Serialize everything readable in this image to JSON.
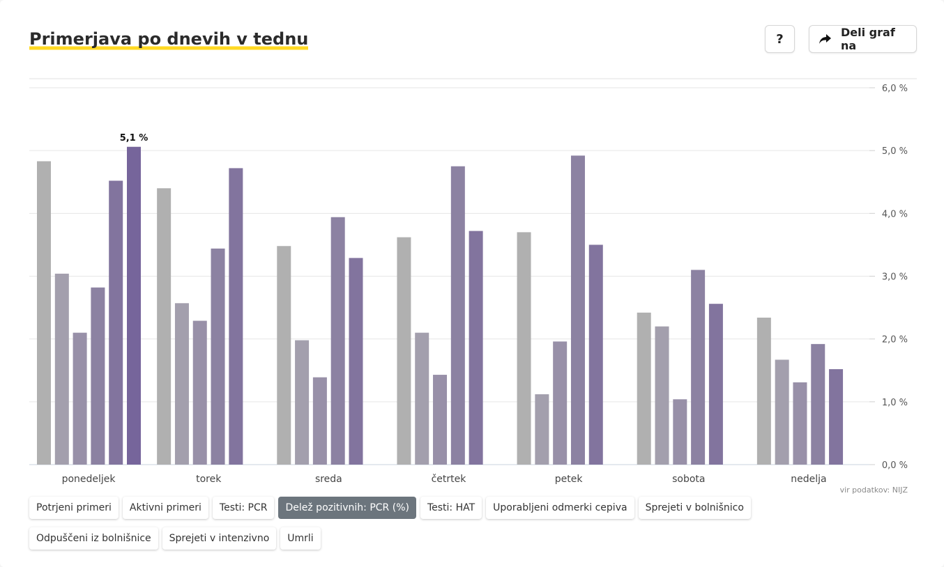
{
  "header": {
    "title": "Primerjava po dnevih v tednu",
    "help_label": "?",
    "share_label": "Deli graf na",
    "share_icon": "share-arrow-icon"
  },
  "chart_data": {
    "type": "bar",
    "categories": [
      "ponedeljek",
      "torek",
      "sreda",
      "četrtek",
      "petek",
      "sobota",
      "nedelja"
    ],
    "series": [
      {
        "values": [
          4.83,
          4.4,
          3.48,
          3.62,
          3.7,
          2.42,
          2.34
        ],
        "color": "#b0b0b0"
      },
      {
        "values": [
          3.04,
          2.57,
          1.98,
          2.1,
          1.12,
          2.2,
          1.67
        ],
        "color": "#a39fad"
      },
      {
        "values": [
          2.1,
          2.29,
          1.39,
          1.43,
          1.96,
          1.04,
          1.31
        ],
        "color": "#9890a8"
      },
      {
        "values": [
          2.82,
          3.44,
          3.94,
          4.75,
          4.92,
          3.1,
          1.92
        ],
        "color": "#8c82a2"
      },
      {
        "values": [
          4.52,
          4.72,
          3.29,
          3.72,
          3.5,
          2.56,
          1.52
        ],
        "color": "#82749e"
      },
      {
        "values": [
          5.06,
          null,
          null,
          null,
          null,
          null,
          null
        ],
        "color": "#76659b"
      }
    ],
    "ylim": [
      0,
      6
    ],
    "yticks": [
      "0,0 %",
      "1,0 %",
      "2,0 %",
      "3,0 %",
      "4,0 %",
      "5,0 %",
      "6,0 %"
    ],
    "grid": true,
    "data_labels": [
      {
        "category": "ponedeljek",
        "series_index": 5,
        "text": "5,1 %"
      }
    ],
    "source": "vir podatkov: NIJZ"
  },
  "tabs": [
    {
      "label": "Potrjeni primeri",
      "active": false
    },
    {
      "label": "Aktivni primeri",
      "active": false
    },
    {
      "label": "Testi: PCR",
      "active": false
    },
    {
      "label": "Delež pozitivnih: PCR (%)",
      "active": true
    },
    {
      "label": "Testi: HAT",
      "active": false
    },
    {
      "label": "Uporabljeni odmerki cepiva",
      "active": false
    },
    {
      "label": "Sprejeti v bolnišnico",
      "active": false
    },
    {
      "label": "Odpuščeni iz bolnišnice",
      "active": false
    },
    {
      "label": "Sprejeti v intenzivno",
      "active": false
    },
    {
      "label": "Umrli",
      "active": false
    }
  ]
}
